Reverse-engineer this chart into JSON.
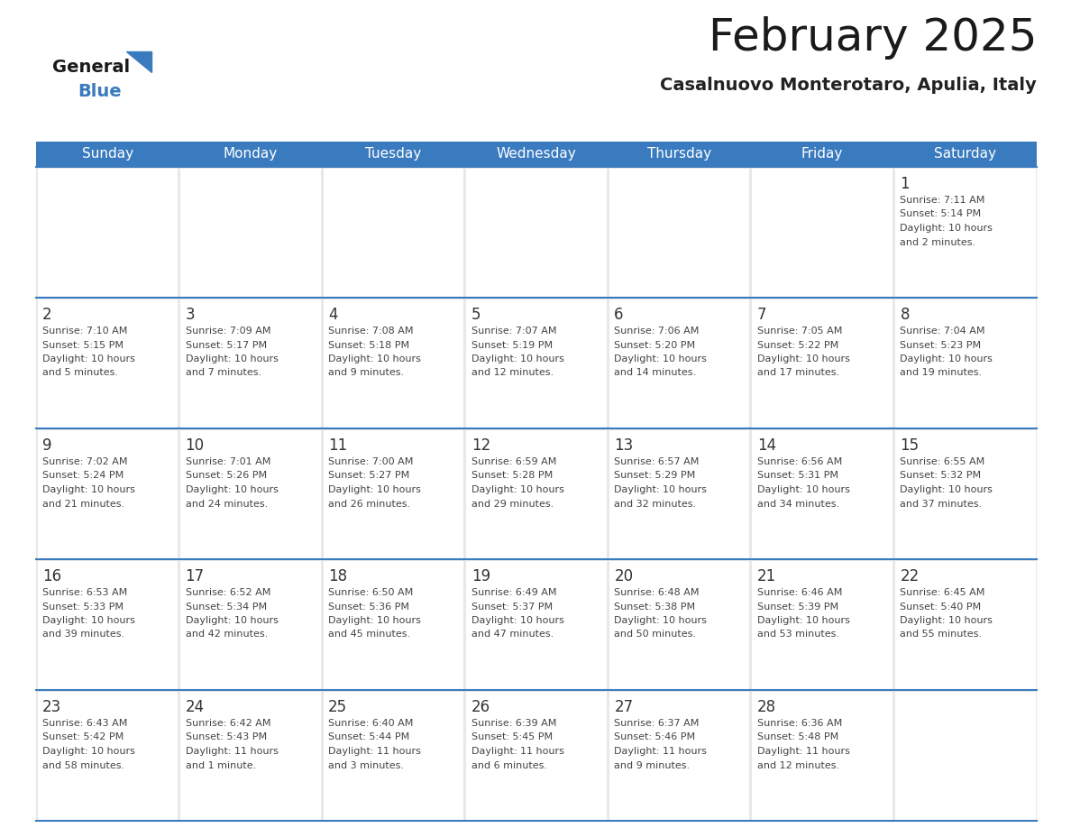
{
  "title": "February 2025",
  "subtitle": "Casalnuovo Monterotaro, Apulia, Italy",
  "header_color": "#3a7bbf",
  "header_text_color": "#ffffff",
  "day_names": [
    "Sunday",
    "Monday",
    "Tuesday",
    "Wednesday",
    "Thursday",
    "Friday",
    "Saturday"
  ],
  "bg_color": "#e8e8e8",
  "cell_bg": "#ffffff",
  "cell_border_color": "#3a7bbf",
  "day_number_color": "#333333",
  "info_text_color": "#444444",
  "title_color": "#1a1a1a",
  "subtitle_color": "#222222",
  "logo_general_color": "#1a1a1a",
  "logo_blue_color": "#3a7bbf",
  "days": [
    {
      "day": 1,
      "col": 6,
      "row": 0,
      "sunrise": "7:11 AM",
      "sunset": "5:14 PM",
      "daylight": "10 hours and 2 minutes."
    },
    {
      "day": 2,
      "col": 0,
      "row": 1,
      "sunrise": "7:10 AM",
      "sunset": "5:15 PM",
      "daylight": "10 hours and 5 minutes."
    },
    {
      "day": 3,
      "col": 1,
      "row": 1,
      "sunrise": "7:09 AM",
      "sunset": "5:17 PM",
      "daylight": "10 hours and 7 minutes."
    },
    {
      "day": 4,
      "col": 2,
      "row": 1,
      "sunrise": "7:08 AM",
      "sunset": "5:18 PM",
      "daylight": "10 hours and 9 minutes."
    },
    {
      "day": 5,
      "col": 3,
      "row": 1,
      "sunrise": "7:07 AM",
      "sunset": "5:19 PM",
      "daylight": "10 hours and 12 minutes."
    },
    {
      "day": 6,
      "col": 4,
      "row": 1,
      "sunrise": "7:06 AM",
      "sunset": "5:20 PM",
      "daylight": "10 hours and 14 minutes."
    },
    {
      "day": 7,
      "col": 5,
      "row": 1,
      "sunrise": "7:05 AM",
      "sunset": "5:22 PM",
      "daylight": "10 hours and 17 minutes."
    },
    {
      "day": 8,
      "col": 6,
      "row": 1,
      "sunrise": "7:04 AM",
      "sunset": "5:23 PM",
      "daylight": "10 hours and 19 minutes."
    },
    {
      "day": 9,
      "col": 0,
      "row": 2,
      "sunrise": "7:02 AM",
      "sunset": "5:24 PM",
      "daylight": "10 hours and 21 minutes."
    },
    {
      "day": 10,
      "col": 1,
      "row": 2,
      "sunrise": "7:01 AM",
      "sunset": "5:26 PM",
      "daylight": "10 hours and 24 minutes."
    },
    {
      "day": 11,
      "col": 2,
      "row": 2,
      "sunrise": "7:00 AM",
      "sunset": "5:27 PM",
      "daylight": "10 hours and 26 minutes."
    },
    {
      "day": 12,
      "col": 3,
      "row": 2,
      "sunrise": "6:59 AM",
      "sunset": "5:28 PM",
      "daylight": "10 hours and 29 minutes."
    },
    {
      "day": 13,
      "col": 4,
      "row": 2,
      "sunrise": "6:57 AM",
      "sunset": "5:29 PM",
      "daylight": "10 hours and 32 minutes."
    },
    {
      "day": 14,
      "col": 5,
      "row": 2,
      "sunrise": "6:56 AM",
      "sunset": "5:31 PM",
      "daylight": "10 hours and 34 minutes."
    },
    {
      "day": 15,
      "col": 6,
      "row": 2,
      "sunrise": "6:55 AM",
      "sunset": "5:32 PM",
      "daylight": "10 hours and 37 minutes."
    },
    {
      "day": 16,
      "col": 0,
      "row": 3,
      "sunrise": "6:53 AM",
      "sunset": "5:33 PM",
      "daylight": "10 hours and 39 minutes."
    },
    {
      "day": 17,
      "col": 1,
      "row": 3,
      "sunrise": "6:52 AM",
      "sunset": "5:34 PM",
      "daylight": "10 hours and 42 minutes."
    },
    {
      "day": 18,
      "col": 2,
      "row": 3,
      "sunrise": "6:50 AM",
      "sunset": "5:36 PM",
      "daylight": "10 hours and 45 minutes."
    },
    {
      "day": 19,
      "col": 3,
      "row": 3,
      "sunrise": "6:49 AM",
      "sunset": "5:37 PM",
      "daylight": "10 hours and 47 minutes."
    },
    {
      "day": 20,
      "col": 4,
      "row": 3,
      "sunrise": "6:48 AM",
      "sunset": "5:38 PM",
      "daylight": "10 hours and 50 minutes."
    },
    {
      "day": 21,
      "col": 5,
      "row": 3,
      "sunrise": "6:46 AM",
      "sunset": "5:39 PM",
      "daylight": "10 hours and 53 minutes."
    },
    {
      "day": 22,
      "col": 6,
      "row": 3,
      "sunrise": "6:45 AM",
      "sunset": "5:40 PM",
      "daylight": "10 hours and 55 minutes."
    },
    {
      "day": 23,
      "col": 0,
      "row": 4,
      "sunrise": "6:43 AM",
      "sunset": "5:42 PM",
      "daylight": "10 hours and 58 minutes."
    },
    {
      "day": 24,
      "col": 1,
      "row": 4,
      "sunrise": "6:42 AM",
      "sunset": "5:43 PM",
      "daylight": "11 hours and 1 minute."
    },
    {
      "day": 25,
      "col": 2,
      "row": 4,
      "sunrise": "6:40 AM",
      "sunset": "5:44 PM",
      "daylight": "11 hours and 3 minutes."
    },
    {
      "day": 26,
      "col": 3,
      "row": 4,
      "sunrise": "6:39 AM",
      "sunset": "5:45 PM",
      "daylight": "11 hours and 6 minutes."
    },
    {
      "day": 27,
      "col": 4,
      "row": 4,
      "sunrise": "6:37 AM",
      "sunset": "5:46 PM",
      "daylight": "11 hours and 9 minutes."
    },
    {
      "day": 28,
      "col": 5,
      "row": 4,
      "sunrise": "6:36 AM",
      "sunset": "5:48 PM",
      "daylight": "11 hours and 12 minutes."
    }
  ]
}
